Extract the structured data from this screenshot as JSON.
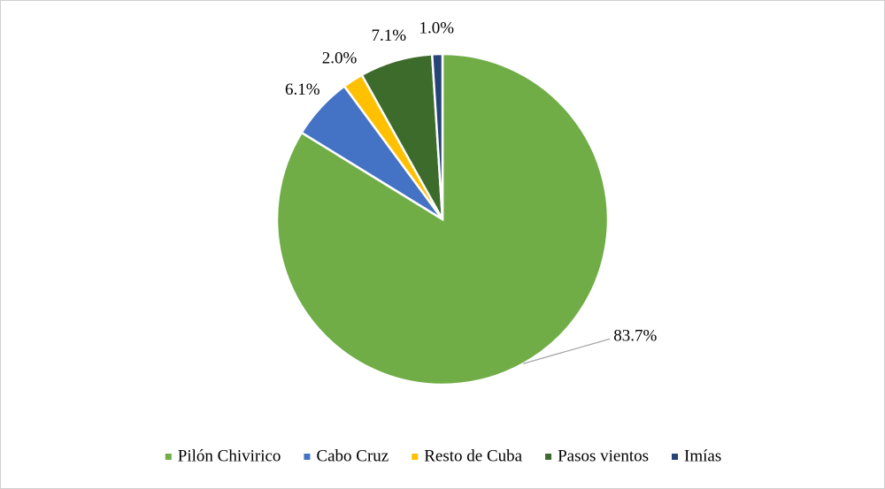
{
  "chart_data": {
    "type": "pie",
    "categories": [
      "Pilón Chivirico",
      "Cabo Cruz",
      "Resto de Cuba",
      "Pasos vientos",
      "Imías"
    ],
    "values": [
      83.7,
      6.1,
      2.0,
      7.1,
      1.0
    ],
    "value_labels": [
      "83.7%",
      "6.1%",
      "2.0%",
      "7.1%",
      "1.0%"
    ],
    "colors": [
      "#70ad47",
      "#4472c4",
      "#ffc000",
      "#3d6b2b",
      "#264478"
    ],
    "legend": "bottom"
  }
}
